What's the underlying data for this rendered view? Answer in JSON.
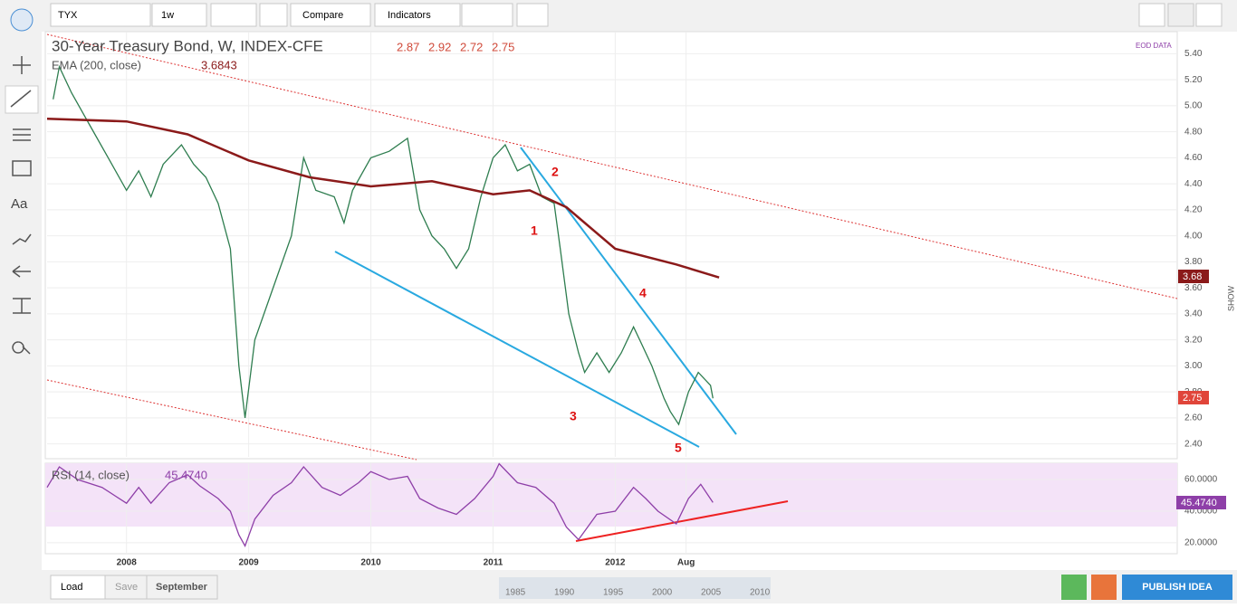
{
  "toolbar": {
    "symbol": "TYX",
    "interval": "1w",
    "compare": "Compare",
    "indicators": "Indicators"
  },
  "side": {
    "eod": "EOD DATA",
    "show": "SHOW"
  },
  "annotations": [
    "1",
    "2",
    "3",
    "4",
    "5"
  ],
  "footer": {
    "load": "Load",
    "save": "Save",
    "range": "September",
    "publish": "PUBLISH IDEA",
    "navigator": [
      "1985",
      "1990",
      "1995",
      "2000",
      "2005",
      "2010"
    ]
  },
  "chart_data": [
    {
      "type": "line",
      "title": "30-Year Treasury Bond, W, INDEX-CFE",
      "ohlc": [
        2.87,
        2.92,
        2.72,
        2.75
      ],
      "x": [
        2007.4,
        2007.45,
        2007.55,
        2007.7,
        2007.85,
        2008.0,
        2008.1,
        2008.2,
        2008.3,
        2008.45,
        2008.55,
        2008.65,
        2008.75,
        2008.85,
        2008.92,
        2008.97,
        2009.05,
        2009.2,
        2009.35,
        2009.45,
        2009.55,
        2009.7,
        2009.78,
        2009.85,
        2010.0,
        2010.15,
        2010.3,
        2010.4,
        2010.5,
        2010.6,
        2010.7,
        2010.8,
        2010.9,
        2011.0,
        2011.1,
        2011.2,
        2011.3,
        2011.4,
        2011.5,
        2011.55,
        2011.62,
        2011.7,
        2011.75,
        2011.85,
        2011.95,
        2012.05,
        2012.15,
        2012.2,
        2012.3,
        2012.4,
        2012.45,
        2012.52,
        2012.6,
        2012.68,
        2012.78,
        2012.8
      ],
      "series": [
        {
          "color": "#2e7d4f",
          "values": [
            5.05,
            5.3,
            5.1,
            4.85,
            4.6,
            4.35,
            4.5,
            4.3,
            4.55,
            4.7,
            4.55,
            4.45,
            4.25,
            3.9,
            3.0,
            2.6,
            3.2,
            3.6,
            4.0,
            4.6,
            4.35,
            4.3,
            4.1,
            4.35,
            4.6,
            4.65,
            4.75,
            4.2,
            4.0,
            3.9,
            3.75,
            3.9,
            4.3,
            4.6,
            4.7,
            4.5,
            4.55,
            4.3,
            4.25,
            3.9,
            3.4,
            3.1,
            2.95,
            3.1,
            2.95,
            3.1,
            3.3,
            3.2,
            3.0,
            2.75,
            2.65,
            2.55,
            2.8,
            2.95,
            2.85,
            2.75
          ],
          "last_label": "2.75"
        },
        {
          "name": "EMA (200, close)",
          "color": "#8b1a1a",
          "last": 3.6843,
          "last_label": "3.68",
          "x": [
            2007.35,
            2008.0,
            2008.5,
            2009.0,
            2009.5,
            2010.0,
            2010.5,
            2011.0,
            2011.3,
            2011.6,
            2012.0,
            2012.5,
            2012.85
          ],
          "values": [
            4.9,
            4.88,
            4.78,
            4.58,
            4.45,
            4.38,
            4.42,
            4.32,
            4.35,
            4.22,
            3.9,
            3.78,
            3.68
          ]
        }
      ],
      "xlim": [
        2007.35,
        2016.6
      ],
      "xticks": [
        {
          "value": 2008,
          "label": "2008"
        },
        {
          "value": 2009,
          "label": "2009"
        },
        {
          "value": 2010,
          "label": "2010"
        },
        {
          "value": 2011,
          "label": "2011"
        },
        {
          "value": 2012,
          "label": "2012"
        },
        {
          "value": 2012.58,
          "label": "Aug"
        }
      ],
      "ylim": [
        2.3,
        5.57
      ],
      "yticks": [
        {
          "value": 2.4,
          "label": "2.40"
        },
        {
          "value": 2.6,
          "label": "2.60"
        },
        {
          "value": 2.8,
          "label": "2.80"
        },
        {
          "value": 3.0,
          "label": "3.00"
        },
        {
          "value": 3.2,
          "label": "3.20"
        },
        {
          "value": 3.4,
          "label": "3.40"
        },
        {
          "value": 3.6,
          "label": "3.60"
        },
        {
          "value": 3.8,
          "label": "3.80"
        },
        {
          "value": 4.0,
          "label": "4.00"
        },
        {
          "value": 4.2,
          "label": "4.20"
        },
        {
          "value": 4.4,
          "label": "4.40"
        },
        {
          "value": 4.6,
          "label": "4.60"
        },
        {
          "value": 4.8,
          "label": "4.80"
        },
        {
          "value": 5.0,
          "label": "5.00"
        },
        {
          "value": 5.2,
          "label": "5.20"
        },
        {
          "value": 5.4,
          "label": "5.40"
        }
      ],
      "grid": true
    },
    {
      "type": "line",
      "title": "RSI (14, close)",
      "last": 45.474,
      "value_labels": "45.4740",
      "x": [
        2007.35,
        2007.45,
        2007.6,
        2007.8,
        2008.0,
        2008.1,
        2008.2,
        2008.35,
        2008.5,
        2008.6,
        2008.75,
        2008.85,
        2008.92,
        2008.97,
        2009.05,
        2009.2,
        2009.35,
        2009.45,
        2009.6,
        2009.75,
        2009.9,
        2010.0,
        2010.15,
        2010.3,
        2010.4,
        2010.55,
        2010.7,
        2010.85,
        2011.0,
        2011.05,
        2011.2,
        2011.35,
        2011.5,
        2011.6,
        2011.7,
        2011.85,
        2012.0,
        2012.15,
        2012.25,
        2012.35,
        2012.5,
        2012.6,
        2012.7,
        2012.8
      ],
      "series": [
        {
          "color": "#8e3fa8",
          "values": [
            55,
            68,
            60,
            55,
            45,
            55,
            45,
            58,
            63,
            56,
            48,
            40,
            25,
            18,
            35,
            50,
            58,
            68,
            55,
            50,
            58,
            65,
            60,
            62,
            48,
            42,
            38,
            48,
            62,
            70,
            58,
            55,
            45,
            30,
            22,
            38,
            40,
            55,
            48,
            40,
            32,
            48,
            57,
            45.474
          ]
        }
      ],
      "ylim": [
        13.1,
        70.3
      ],
      "yticks": [
        {
          "value": 20,
          "label": "20.0000"
        },
        {
          "value": 40,
          "label": "40.0000"
        },
        {
          "value": 60,
          "label": "60.0000"
        }
      ],
      "grid": true
    }
  ]
}
